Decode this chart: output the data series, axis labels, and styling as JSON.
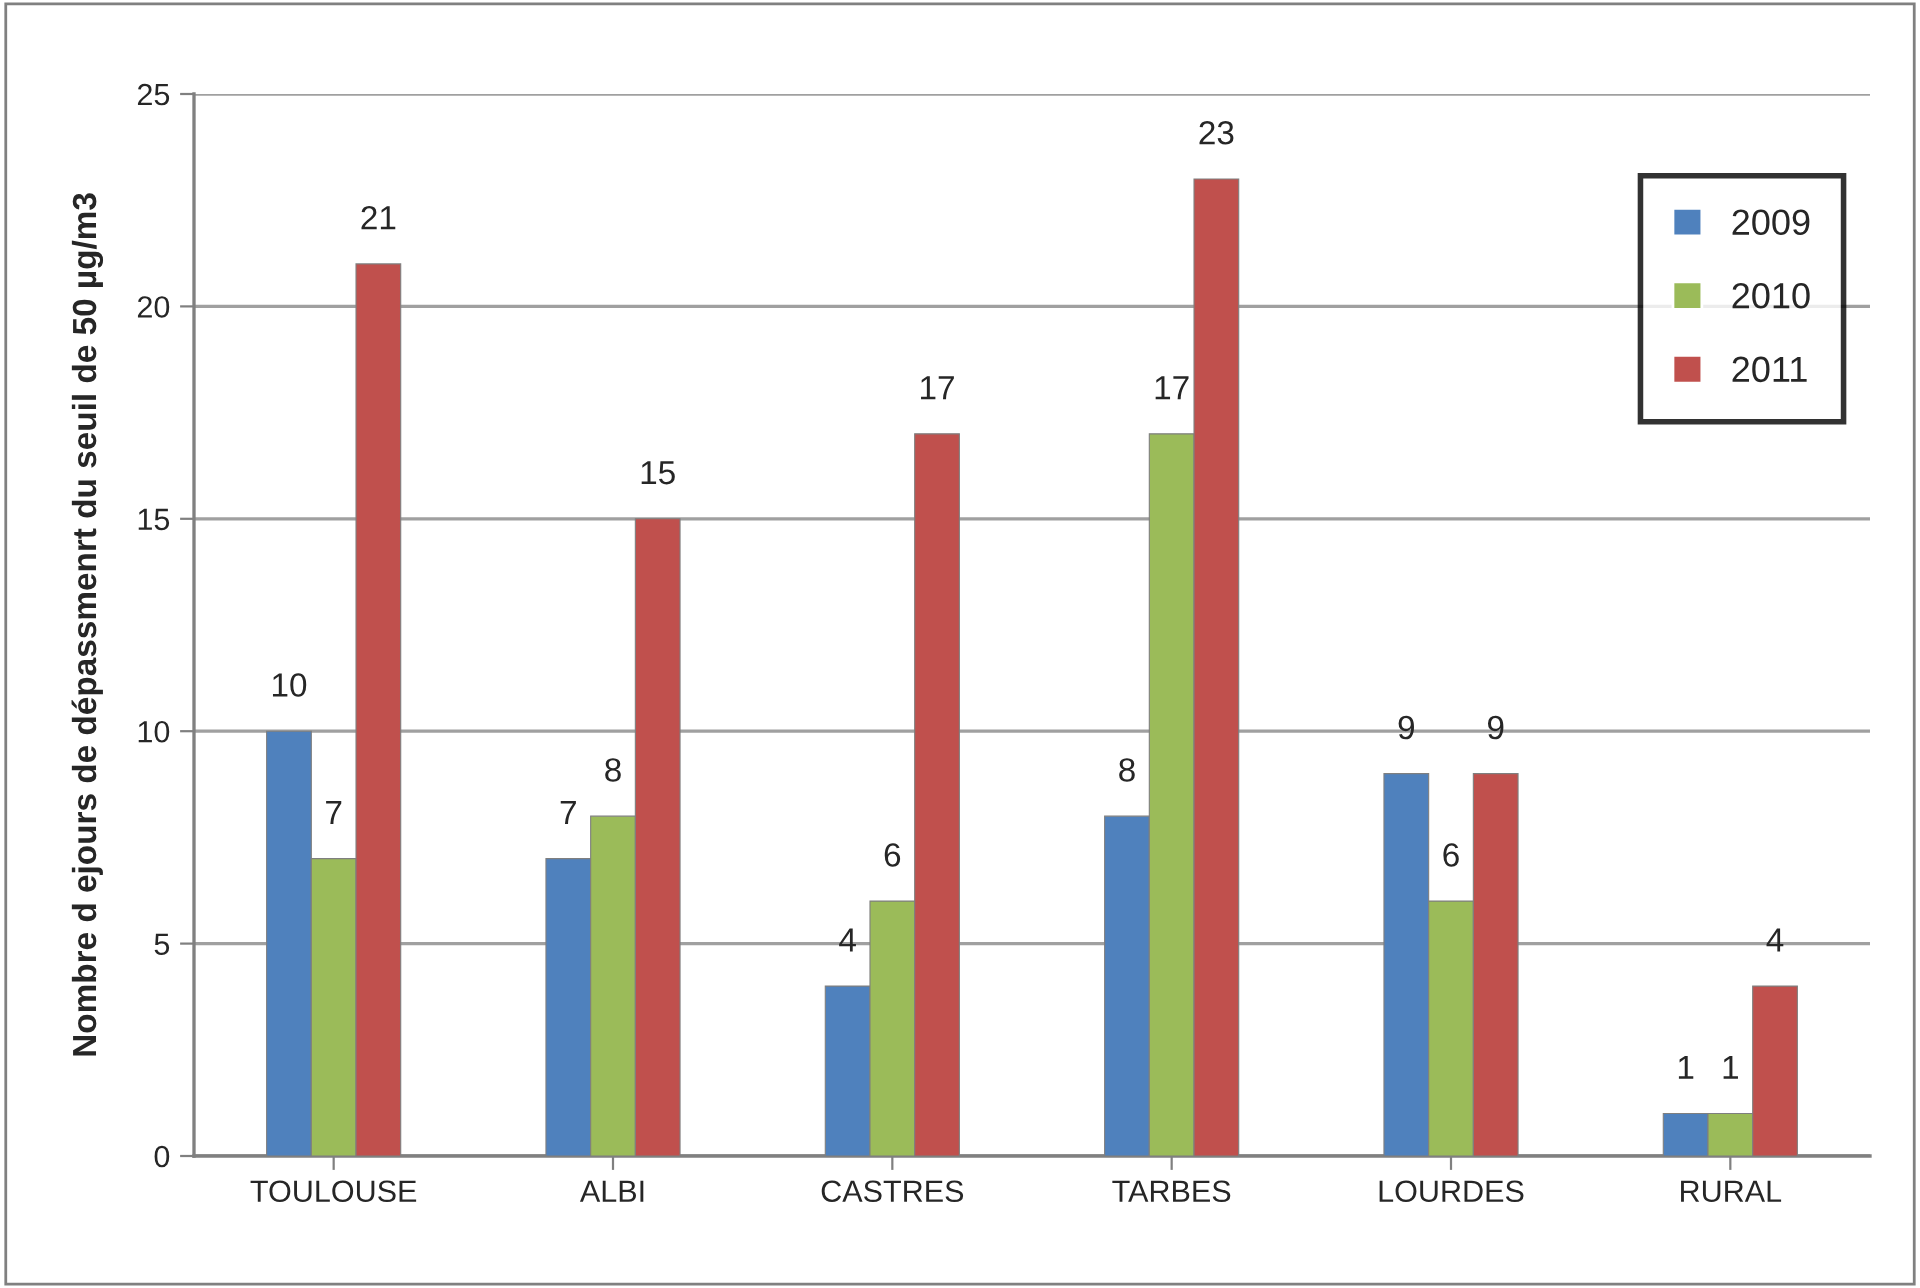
{
  "chart_data": {
    "type": "bar",
    "ylabel": "Nombre d ejours de dépassmenrt du seuil de 50 µg/m3",
    "categories": [
      "TOULOUSE",
      "ALBI",
      "CASTRES",
      "TARBES",
      "LOURDES",
      "RURAL"
    ],
    "series": [
      {
        "name": "2009",
        "color": "#4f81bd",
        "values": [
          10,
          7,
          4,
          8,
          9,
          1
        ]
      },
      {
        "name": "2010",
        "color": "#9bbb59",
        "values": [
          7,
          8,
          6,
          17,
          6,
          1
        ]
      },
      {
        "name": "2011",
        "color": "#c0504d",
        "values": [
          21,
          15,
          17,
          23,
          9,
          4
        ]
      }
    ],
    "ylim": [
      0,
      25
    ],
    "yticks": [
      0,
      5,
      10,
      15,
      20,
      25
    ],
    "grid": "y",
    "legend": "top right",
    "data_labels": true
  }
}
